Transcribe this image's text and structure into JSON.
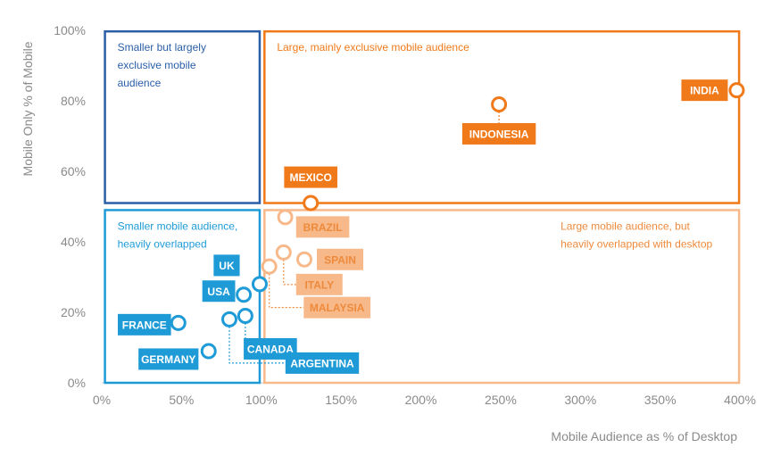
{
  "chart_data": {
    "type": "scatter",
    "xlabel": "Mobile Audience as % of Desktop",
    "ylabel": "Mobile Only % of Mobile",
    "xlim": [
      0,
      400
    ],
    "ylim": [
      0,
      100
    ],
    "x_ticks": [
      "0%",
      "50%",
      "100%",
      "150%",
      "200%",
      "250%",
      "300%",
      "350%",
      "400%"
    ],
    "y_ticks": [
      "0%",
      "20%",
      "40%",
      "60%",
      "80%",
      "100%"
    ],
    "grid": false,
    "thresholds": {
      "x": 100,
      "y": 50
    },
    "quadrants": [
      {
        "id": "top-left",
        "lines": [
          "Smaller but largely",
          "exclusive mobile",
          "audience"
        ],
        "color": "#2a5ea8"
      },
      {
        "id": "top-right",
        "lines": [
          "Large, mainly exclusive mobile audience"
        ],
        "color": "#f07a1a"
      },
      {
        "id": "bottom-left",
        "lines": [
          "Smaller mobile audience,",
          "heavily overlapped"
        ],
        "color": "#1e9bd7"
      },
      {
        "id": "bottom-right",
        "lines": [
          "Large mobile audience, but",
          "heavily overlapped with desktop"
        ],
        "color": "#f7b98a"
      }
    ],
    "points": [
      {
        "label": "INDIA",
        "x": 398,
        "y": 83,
        "group": "top-right"
      },
      {
        "label": "INDONESIA",
        "x": 249,
        "y": 79,
        "group": "top-right"
      },
      {
        "label": "MEXICO",
        "x": 131,
        "y": 51,
        "group": "top-right"
      },
      {
        "label": "BRAZIL",
        "x": 115,
        "y": 47,
        "group": "bottom-right"
      },
      {
        "label": "SPAIN",
        "x": 127,
        "y": 35,
        "group": "bottom-right"
      },
      {
        "label": "ITALY",
        "x": 114,
        "y": 37,
        "group": "bottom-right"
      },
      {
        "label": "MALAYSIA",
        "x": 105,
        "y": 33,
        "group": "bottom-right"
      },
      {
        "label": "UK",
        "x": 99,
        "y": 28,
        "group": "bottom-left"
      },
      {
        "label": "USA",
        "x": 89,
        "y": 25,
        "group": "bottom-left"
      },
      {
        "label": "FRANCE",
        "x": 48,
        "y": 17,
        "group": "bottom-left"
      },
      {
        "label": "CANADA",
        "x": 90,
        "y": 19,
        "group": "bottom-left"
      },
      {
        "label": "ARGENTINA",
        "x": 80,
        "y": 18,
        "group": "bottom-left"
      },
      {
        "label": "GERMANY",
        "x": 67,
        "y": 9,
        "group": "bottom-left"
      }
    ],
    "colors": {
      "top-right": "#f07a1a",
      "bottom-right": "#f7b98a",
      "bottom-right-text": "#ee8a3c",
      "bottom-left": "#1e9bd7",
      "top-left": "#2a5ea8"
    }
  }
}
